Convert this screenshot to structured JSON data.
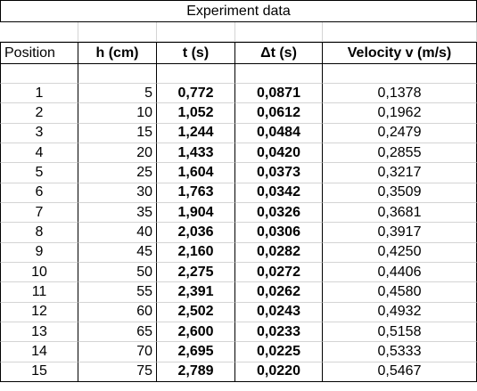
{
  "sheet": {
    "title": "Experiment data",
    "headers": [
      "Position",
      "h (cm)",
      "t (s)",
      "Δt (s)",
      "Velocity v (m/s)"
    ],
    "rows": [
      [
        "1",
        "5",
        "0,772",
        "0,0871",
        "0,1378"
      ],
      [
        "2",
        "10",
        "1,052",
        "0,0612",
        "0,1962"
      ],
      [
        "3",
        "15",
        "1,244",
        "0,0484",
        "0,2479"
      ],
      [
        "4",
        "20",
        "1,433",
        "0,0420",
        "0,2855"
      ],
      [
        "5",
        "25",
        "1,604",
        "0,0373",
        "0,3217"
      ],
      [
        "6",
        "30",
        "1,763",
        "0,0342",
        "0,3509"
      ],
      [
        "7",
        "35",
        "1,904",
        "0,0326",
        "0,3681"
      ],
      [
        "8",
        "40",
        "2,036",
        "0,0306",
        "0,3917"
      ],
      [
        "9",
        "45",
        "2,160",
        "0,0282",
        "0,4250"
      ],
      [
        "10",
        "50",
        "2,275",
        "0,0272",
        "0,4406"
      ],
      [
        "11",
        "55",
        "2,391",
        "0,0262",
        "0,4580"
      ],
      [
        "12",
        "60",
        "2,502",
        "0,0243",
        "0,4932"
      ],
      [
        "13",
        "65",
        "2,600",
        "0,0233",
        "0,5158"
      ],
      [
        "14",
        "70",
        "2,695",
        "0,0225",
        "0,5333"
      ],
      [
        "15",
        "75",
        "2,789",
        "0,0220",
        "0,5467"
      ]
    ]
  }
}
